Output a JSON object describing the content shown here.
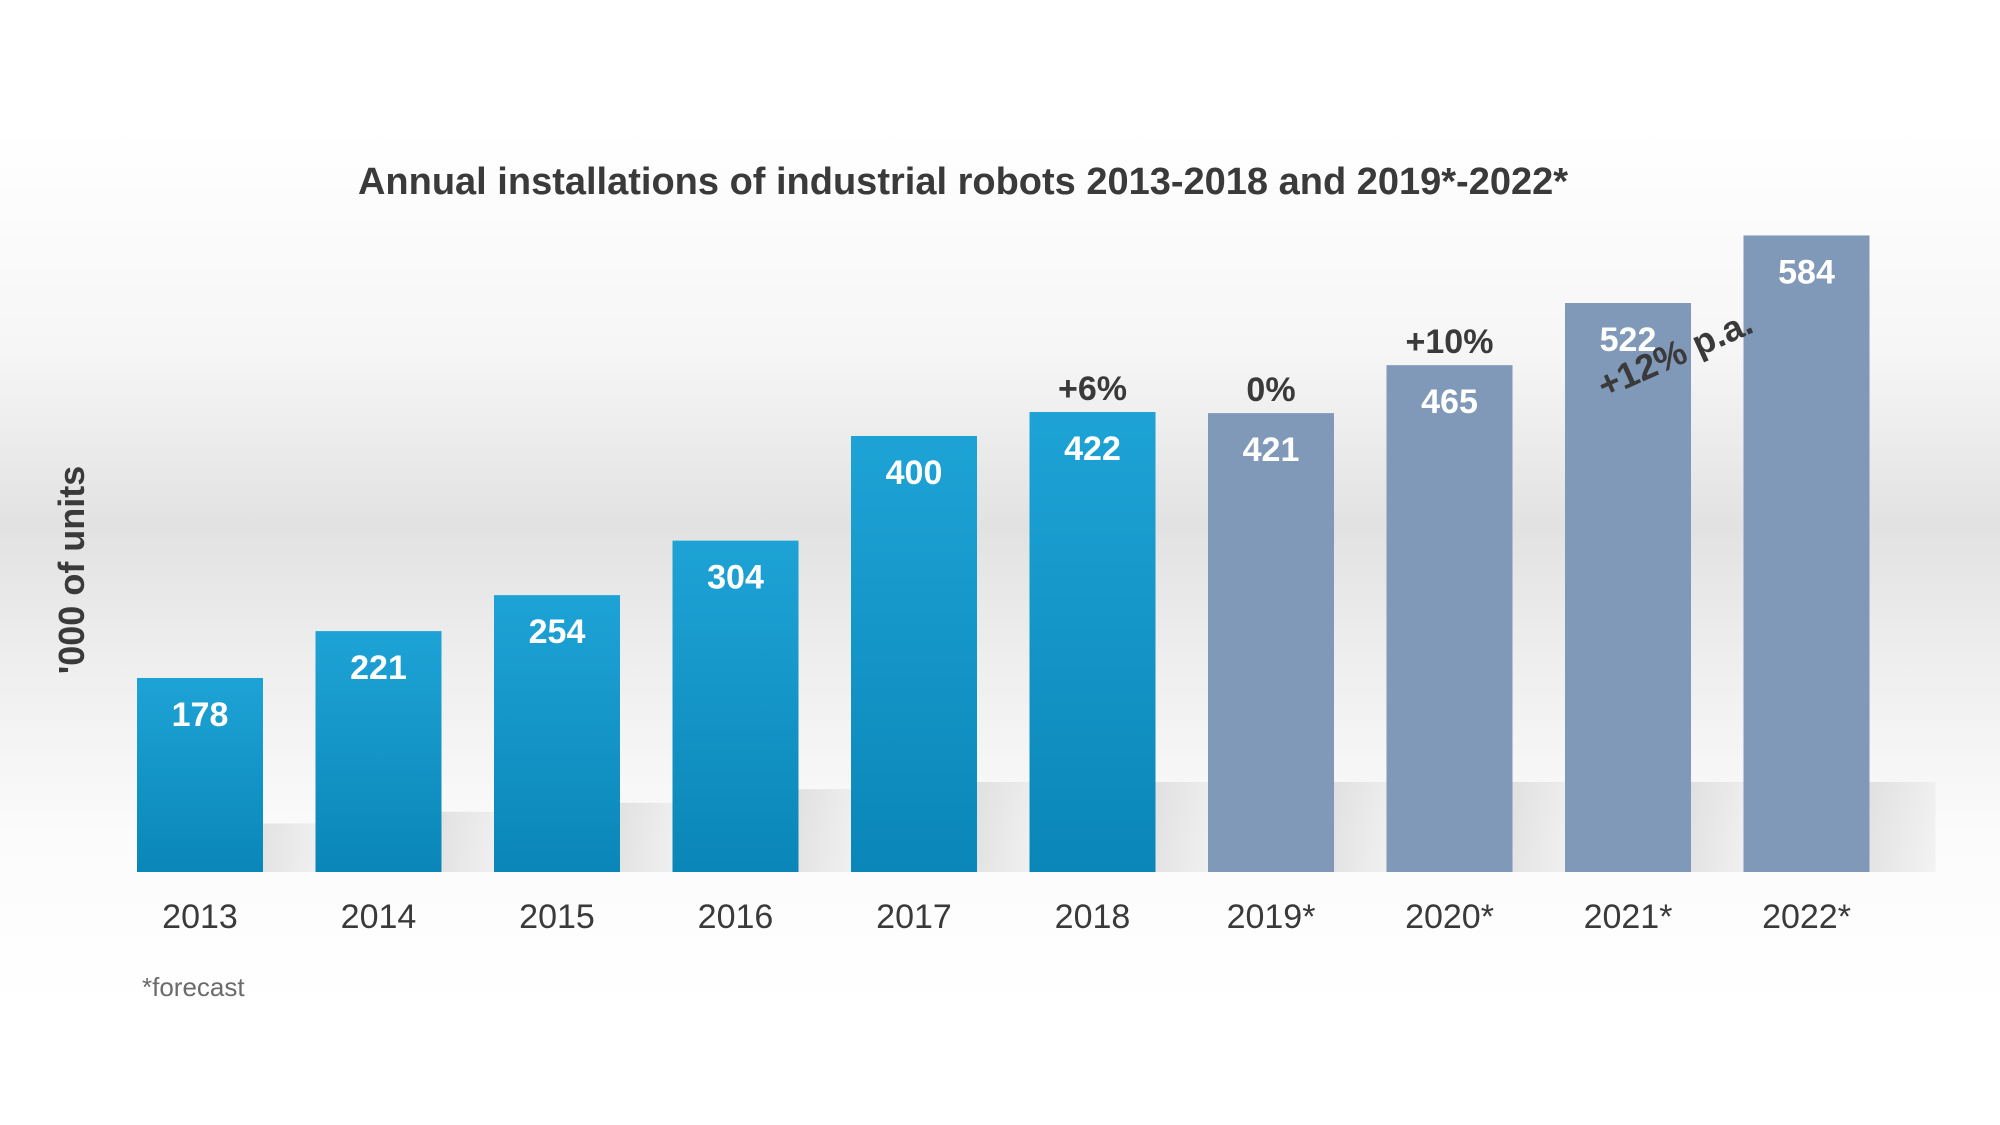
{
  "chart_data": {
    "type": "bar",
    "title": "Annual installations of industrial robots 2013-2018 and 2019*-2022*",
    "ylabel": "'000 of units",
    "xlabel": "",
    "categories": [
      "2013",
      "2014",
      "2015",
      "2016",
      "2017",
      "2018",
      "2019*",
      "2020*",
      "2021*",
      "2022*"
    ],
    "values": [
      178,
      221,
      254,
      304,
      400,
      422,
      421,
      465,
      522,
      584
    ],
    "value_labels": [
      "178",
      "221",
      "254",
      "304",
      "400",
      "422",
      "421",
      "465",
      "522",
      "584"
    ],
    "forecast_flags": [
      false,
      false,
      false,
      false,
      false,
      false,
      true,
      true,
      true,
      true
    ],
    "ylim": [
      0,
      600
    ],
    "growth_labels": [
      {
        "category": "2018",
        "text": "+6%"
      },
      {
        "category": "2019*",
        "text": "0%"
      },
      {
        "category": "2020*",
        "text": "+10%"
      }
    ],
    "range_annotation": {
      "from": "2020*",
      "to": "2022*",
      "text": "+12% p.a."
    },
    "footnote": "*forecast",
    "grid": false,
    "legend": "none",
    "colors": {
      "actual_top": "#1ea3d6",
      "actual_bottom": "#0a86b8",
      "forecast": "#8199b8",
      "text": "#3a3a3a",
      "value_label": "#ffffff"
    }
  }
}
